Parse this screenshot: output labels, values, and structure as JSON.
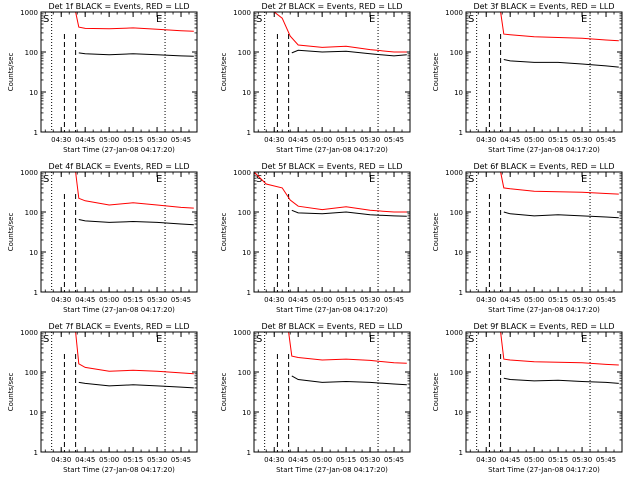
{
  "figure": {
    "ylabel": "Counts/sec",
    "xlabel": "Start Time (27-Jan-08 04:17:20)",
    "x_ticks": [
      "04:30",
      "04:45",
      "05:00",
      "05:15",
      "05:30",
      "05:45"
    ],
    "y_ticks": [
      "1",
      "10",
      "100",
      "1000"
    ],
    "marker_start": "S",
    "marker_end": "E",
    "colors": {
      "events": "#000000",
      "lld": "#ff0000",
      "axes": "#000000",
      "background": "#ffffff"
    }
  },
  "chart_data": [
    {
      "type": "line",
      "title": "Det 1f BLACK = Events, RED = LLD",
      "xlabel": "Start Time (27-Jan-08 04:17:20)",
      "ylabel": "Counts/sec",
      "ylim": [
        1,
        1000
      ],
      "y_scale": "log",
      "x_range": [
        "04:17:20",
        "05:55"
      ],
      "vlines_dotted": [
        "04:24",
        "05:35"
      ],
      "vlines_dashed": [
        "04:32",
        "04:39"
      ],
      "series": [
        {
          "name": "LLD",
          "x": [
            "04:39",
            "04:41",
            "04:45",
            "05:00",
            "05:15",
            "05:30",
            "05:45",
            "05:53"
          ],
          "values": [
            1000,
            420,
            390,
            380,
            400,
            370,
            340,
            330
          ]
        },
        {
          "name": "Events",
          "x": [
            "04:41",
            "04:45",
            "05:00",
            "05:15",
            "05:30",
            "05:45",
            "05:53"
          ],
          "values": [
            95,
            90,
            85,
            90,
            85,
            80,
            78
          ]
        }
      ]
    },
    {
      "type": "line",
      "title": "Det 2f BLACK = Events, RED = LLD",
      "xlabel": "Start Time (27-Jan-08 04:17:20)",
      "ylabel": "Counts/sec",
      "ylim": [
        1,
        1000
      ],
      "y_scale": "log",
      "x_range": [
        "04:17:20",
        "05:55"
      ],
      "vlines_dotted": [
        "04:24",
        "05:35"
      ],
      "vlines_dashed": [
        "04:32",
        "04:39"
      ],
      "series": [
        {
          "name": "LLD",
          "x": [
            "04:30",
            "04:35",
            "04:40",
            "04:45",
            "05:00",
            "05:15",
            "05:30",
            "05:45",
            "05:53"
          ],
          "values": [
            1000,
            700,
            250,
            150,
            130,
            140,
            115,
            100,
            100
          ]
        },
        {
          "name": "Events",
          "x": [
            "04:41",
            "04:45",
            "05:00",
            "05:15",
            "05:30",
            "05:45",
            "05:53"
          ],
          "values": [
            95,
            110,
            100,
            105,
            90,
            80,
            85
          ]
        }
      ]
    },
    {
      "type": "line",
      "title": "Det 3f BLACK = Events, RED = LLD",
      "xlabel": "Start Time (27-Jan-08 04:17:20)",
      "ylabel": "Counts/sec",
      "ylim": [
        1,
        1000
      ],
      "y_scale": "log",
      "x_range": [
        "04:17:20",
        "05:55"
      ],
      "vlines_dotted": [
        "04:24",
        "05:35"
      ],
      "vlines_dashed": [
        "04:32",
        "04:39"
      ],
      "series": [
        {
          "name": "LLD",
          "x": [
            "04:39",
            "04:41",
            "04:45",
            "05:00",
            "05:15",
            "05:30",
            "05:45",
            "05:53"
          ],
          "values": [
            1000,
            280,
            270,
            240,
            230,
            220,
            200,
            190
          ]
        },
        {
          "name": "Events",
          "x": [
            "04:41",
            "04:45",
            "05:00",
            "05:15",
            "05:30",
            "05:45",
            "05:53"
          ],
          "values": [
            65,
            60,
            55,
            55,
            50,
            45,
            42
          ]
        }
      ]
    },
    {
      "type": "line",
      "title": "Det 4f BLACK = Events, RED = LLD",
      "xlabel": "Start Time (27-Jan-08 04:17:20)",
      "ylabel": "Counts/sec",
      "ylim": [
        1,
        1000
      ],
      "y_scale": "log",
      "x_range": [
        "04:17:20",
        "05:55"
      ],
      "vlines_dotted": [
        "04:24",
        "05:35"
      ],
      "vlines_dashed": [
        "04:32",
        "04:39"
      ],
      "series": [
        {
          "name": "LLD",
          "x": [
            "04:39",
            "04:41",
            "04:45",
            "05:00",
            "05:15",
            "05:30",
            "05:45",
            "05:53"
          ],
          "values": [
            1000,
            220,
            190,
            150,
            170,
            150,
            130,
            125
          ]
        },
        {
          "name": "Events",
          "x": [
            "04:41",
            "04:45",
            "05:00",
            "05:15",
            "05:30",
            "05:45",
            "05:53"
          ],
          "values": [
            65,
            60,
            55,
            58,
            55,
            50,
            48
          ]
        }
      ]
    },
    {
      "type": "line",
      "title": "Det 5f BLACK = Events, RED = LLD",
      "xlabel": "Start Time (27-Jan-08 04:17:20)",
      "ylabel": "Counts/sec",
      "ylim": [
        1,
        1000
      ],
      "y_scale": "log",
      "x_range": [
        "04:17:20",
        "05:55"
      ],
      "vlines_dotted": [
        "04:24",
        "05:35"
      ],
      "vlines_dashed": [
        "04:32",
        "04:39"
      ],
      "series": [
        {
          "name": "LLD",
          "x": [
            "04:17:20",
            "04:25",
            "04:35",
            "04:40",
            "04:45",
            "05:00",
            "05:15",
            "05:30",
            "05:45",
            "05:53"
          ],
          "values": [
            1000,
            500,
            400,
            200,
            140,
            115,
            135,
            110,
            100,
            100
          ]
        },
        {
          "name": "Events",
          "x": [
            "04:41",
            "04:45",
            "05:00",
            "05:15",
            "05:30",
            "05:45",
            "05:53"
          ],
          "values": [
            110,
            95,
            90,
            100,
            85,
            80,
            78
          ]
        }
      ]
    },
    {
      "type": "line",
      "title": "Det 6f BLACK = Events, RED = LLD",
      "xlabel": "Start Time (27-Jan-08 04:17:20)",
      "ylabel": "Counts/sec",
      "ylim": [
        1,
        1000
      ],
      "y_scale": "log",
      "x_range": [
        "04:17:20",
        "05:55"
      ],
      "vlines_dotted": [
        "04:24",
        "05:35"
      ],
      "vlines_dashed": [
        "04:32",
        "04:39"
      ],
      "series": [
        {
          "name": "LLD",
          "x": [
            "04:39",
            "04:41",
            "04:45",
            "05:00",
            "05:15",
            "05:30",
            "05:45",
            "05:53"
          ],
          "values": [
            1000,
            400,
            380,
            330,
            320,
            310,
            290,
            280
          ]
        },
        {
          "name": "Events",
          "x": [
            "04:41",
            "04:45",
            "05:00",
            "05:15",
            "05:30",
            "05:45",
            "05:53"
          ],
          "values": [
            100,
            90,
            80,
            85,
            80,
            75,
            72
          ]
        }
      ]
    },
    {
      "type": "line",
      "title": "Det 7f BLACK = Events, RED = LLD",
      "xlabel": "Start Time (27-Jan-08 04:17:20)",
      "ylabel": "Counts/sec",
      "ylim": [
        1,
        1000
      ],
      "y_scale": "log",
      "x_range": [
        "04:17:20",
        "05:55"
      ],
      "vlines_dotted": [
        "04:24",
        "05:35"
      ],
      "vlines_dashed": [
        "04:32",
        "04:39"
      ],
      "series": [
        {
          "name": "LLD",
          "x": [
            "04:39",
            "04:41",
            "04:45",
            "05:00",
            "05:15",
            "05:30",
            "05:45",
            "05:53"
          ],
          "values": [
            1000,
            160,
            130,
            105,
            110,
            105,
            95,
            90
          ]
        },
        {
          "name": "Events",
          "x": [
            "04:41",
            "04:45",
            "05:00",
            "05:15",
            "05:30",
            "05:45",
            "05:53"
          ],
          "values": [
            55,
            52,
            45,
            48,
            45,
            42,
            40
          ]
        }
      ]
    },
    {
      "type": "line",
      "title": "Det 8f BLACK = Events, RED = LLD",
      "xlabel": "Start Time (27-Jan-08 04:17:20)",
      "ylabel": "Counts/sec",
      "ylim": [
        1,
        1000
      ],
      "y_scale": "log",
      "x_range": [
        "04:17:20",
        "05:55"
      ],
      "vlines_dotted": [
        "04:24",
        "05:35"
      ],
      "vlines_dashed": [
        "04:32",
        "04:39"
      ],
      "series": [
        {
          "name": "LLD",
          "x": [
            "04:39",
            "04:41",
            "04:45",
            "05:00",
            "05:15",
            "05:30",
            "05:45",
            "05:53"
          ],
          "values": [
            1000,
            250,
            230,
            200,
            210,
            195,
            170,
            165
          ]
        },
        {
          "name": "Events",
          "x": [
            "04:41",
            "04:45",
            "05:00",
            "05:15",
            "05:30",
            "05:45",
            "05:53"
          ],
          "values": [
            80,
            65,
            55,
            58,
            55,
            50,
            48
          ]
        }
      ]
    },
    {
      "type": "line",
      "title": "Det 9f BLACK = Events, RED = LLD",
      "xlabel": "Start Time (27-Jan-08 04:17:20)",
      "ylabel": "Counts/sec",
      "ylim": [
        1,
        1000
      ],
      "y_scale": "log",
      "x_range": [
        "04:17:20",
        "05:55"
      ],
      "vlines_dotted": [
        "04:24",
        "05:35"
      ],
      "vlines_dashed": [
        "04:32",
        "04:39"
      ],
      "series": [
        {
          "name": "LLD",
          "x": [
            "04:39",
            "04:41",
            "04:45",
            "05:00",
            "05:15",
            "05:30",
            "05:45",
            "05:53"
          ],
          "values": [
            1000,
            210,
            200,
            180,
            175,
            170,
            155,
            150
          ]
        },
        {
          "name": "Events",
          "x": [
            "04:41",
            "04:45",
            "05:00",
            "05:15",
            "05:30",
            "05:45",
            "05:53"
          ],
          "values": [
            70,
            65,
            60,
            62,
            58,
            55,
            52
          ]
        }
      ]
    }
  ]
}
